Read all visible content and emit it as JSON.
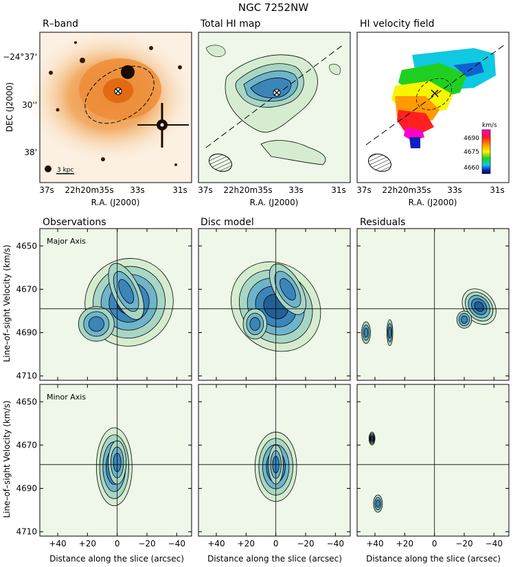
{
  "figure": {
    "title": "NGC 7252NW",
    "row1_titles": [
      "R–band",
      "Total HI map",
      "HI velocity field"
    ],
    "row2_titles": [
      "Observations",
      "Disc model",
      "Residuals"
    ],
    "ylabel_dec": "DEC (J2000)",
    "xlabel_ra": "R.A. (J2000)",
    "ylabel_vel": "Line–of–sight Velocity (km/s)",
    "xlabel_dist": "Distance along the slice (arcsec)",
    "dec_ticks": [
      "−24°37'",
      "30''",
      "38'"
    ],
    "ra_ticks": [
      "37s",
      "22h20m35s",
      "33s",
      "31s"
    ],
    "scale_bar": "3 kpc",
    "major_axis_label": "Major Axis",
    "minor_axis_label": "Minor Axis",
    "colorbar_unit": "km/s",
    "colorbar_ticks": [
      "4690",
      "4675",
      "4660"
    ],
    "colors": {
      "rband_bg": "#f2a45a",
      "hi_bg": "#eef7e8",
      "pv_fill_1": "#d6ecd0",
      "pv_fill_2": "#a8d6c4",
      "pv_fill_3": "#6fb4c8",
      "pv_fill_4": "#3b85b8",
      "pv_fill_5": "#235f96"
    }
  },
  "chart_data": [
    {
      "type": "heatmap",
      "panel": "R–band",
      "ylabel": "DEC (J2000)",
      "xlabel": "R.A. (J2000)",
      "y_ticks": [
        "−24°37'",
        "30''",
        "38'"
      ],
      "x_ticks": [
        "37s",
        "22h20m35s",
        "33s",
        "31s"
      ],
      "annotations": [
        "3 kpc"
      ]
    },
    {
      "type": "heatmap",
      "panel": "Total HI map",
      "xlabel": "R.A. (J2000)",
      "x_ticks": [
        "37s",
        "22h20m35s",
        "33s",
        "31s"
      ]
    },
    {
      "type": "heatmap",
      "panel": "HI velocity field",
      "xlabel": "R.A. (J2000)",
      "x_ticks": [
        "37s",
        "22h20m35s",
        "33s",
        "31s"
      ],
      "colorbar": {
        "label": "km/s",
        "range": [
          4655,
          4698
        ],
        "ticks": [
          4690,
          4675,
          4660
        ]
      }
    },
    {
      "type": "heatmap",
      "panel": "Observations",
      "annotation": "Major Axis",
      "ylabel": "Line–of–sight Velocity (km/s)",
      "y_ticks": [
        4650,
        4670,
        4690,
        4710
      ],
      "ylim": [
        4712,
        4642
      ],
      "xlim": [
        52,
        -50
      ],
      "x_ticks": [
        40,
        20,
        0,
        -20,
        -40
      ],
      "systemic_velocity": 4679,
      "components": [
        {
          "x": -4,
          "v": 4672,
          "level": 5
        },
        {
          "x": 14,
          "v": 4686,
          "level": 4
        }
      ]
    },
    {
      "type": "heatmap",
      "panel": "Disc model",
      "annotation": "Major Axis",
      "y_ticks": [
        4650,
        4670,
        4690,
        4710
      ],
      "ylim": [
        4712,
        4642
      ],
      "xlim": [
        52,
        -50
      ],
      "x_ticks": [
        40,
        20,
        0,
        -20,
        -40
      ],
      "systemic_velocity": 4679
    },
    {
      "type": "heatmap",
      "panel": "Residuals",
      "annotation": "Major Axis",
      "y_ticks": [
        4650,
        4670,
        4690,
        4710
      ],
      "ylim": [
        4712,
        4642
      ],
      "xlim": [
        52,
        -50
      ],
      "x_ticks": [
        40,
        20,
        0,
        -20,
        -40
      ],
      "systemic_velocity": 4679
    },
    {
      "type": "heatmap",
      "panel": "Observations",
      "annotation": "Minor Axis",
      "xlabel": "Distance along the slice (arcsec)",
      "ylabel": "Line–of–sight Velocity (km/s)",
      "y_ticks": [
        4650,
        4670,
        4690,
        4710
      ],
      "x_ticks": [
        "+40",
        "+20",
        "0",
        "−20",
        "−40"
      ],
      "systemic_velocity": 4679
    },
    {
      "type": "heatmap",
      "panel": "Disc model",
      "annotation": "Minor Axis",
      "xlabel": "Distance along the slice (arcsec)",
      "x_ticks": [
        "+40",
        "+20",
        "0",
        "−20",
        "−40"
      ],
      "systemic_velocity": 4679
    },
    {
      "type": "heatmap",
      "panel": "Residuals",
      "annotation": "Minor Axis",
      "xlabel": "Distance along the slice (arcsec)",
      "x_ticks": [
        "+40",
        "+20",
        "0",
        "−20",
        "−40"
      ],
      "systemic_velocity": 4679
    }
  ]
}
